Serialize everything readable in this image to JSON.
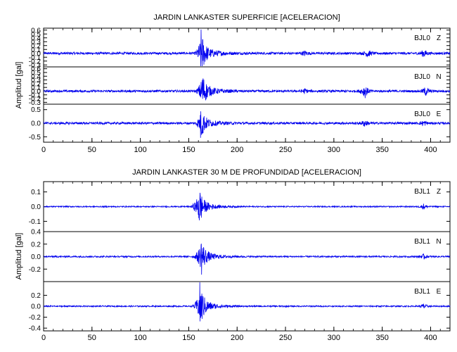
{
  "colors": {
    "trace": "#0000ee",
    "axis": "#000000",
    "background": "#ffffff"
  },
  "chart_data": [
    {
      "type": "line",
      "title": "JARDIN LANKASTER SUPERFICIE [ACELERACION]",
      "ylabel": "Amplitud [gal]",
      "xlim": [
        0,
        420
      ],
      "x_ticks": [
        "0",
        "50",
        "100",
        "150",
        "200",
        "250",
        "300",
        "350",
        "400"
      ],
      "grid": false,
      "panels": [
        {
          "channel": "BJL0",
          "component": "Z",
          "ylim": [
            -0.35,
            0.65
          ],
          "y_ticks": [
            "0.6",
            "0.5",
            "0.4",
            "0.3",
            "0.2",
            "0.1",
            "0.0",
            "-0.1",
            "-0.2",
            "-0.3"
          ],
          "approx_trace": {
            "peak_time": 162,
            "peak_amp": 0.55,
            "noise_amp": 0.03,
            "event_start": 155,
            "event_end": 172,
            "bursts": [
              {
                "t": 270,
                "a": 0.06
              },
              {
                "t": 335,
                "a": 0.1
              },
              {
                "t": 393,
                "a": 0.1
              }
            ]
          }
        },
        {
          "channel": "BJL0",
          "component": "N",
          "ylim": [
            -0.35,
            0.65
          ],
          "y_ticks": [
            "0.6",
            "0.5",
            "0.4",
            "0.3",
            "0.2",
            "0.1",
            "0.0",
            "-0.1",
            "-0.2",
            "-0.3"
          ],
          "approx_trace": {
            "peak_time": 163,
            "peak_amp": 0.5,
            "noise_amp": 0.03,
            "event_start": 156,
            "event_end": 175,
            "bursts": [
              {
                "t": 270,
                "a": 0.06
              },
              {
                "t": 332,
                "a": 0.18
              },
              {
                "t": 395,
                "a": 0.12
              }
            ]
          }
        },
        {
          "channel": "BJL0",
          "component": "E",
          "ylim": [
            -0.7,
            0.7
          ],
          "y_ticks": [
            "0.5",
            "0.0",
            "-0.5"
          ],
          "approx_trace": {
            "peak_time": 162,
            "peak_amp": 0.55,
            "noise_amp": 0.04,
            "event_start": 155,
            "event_end": 172,
            "bursts": [
              {
                "t": 332,
                "a": 0.12
              },
              {
                "t": 393,
                "a": 0.1
              }
            ]
          }
        }
      ]
    },
    {
      "type": "line",
      "title": "JARDIN LANKASTER 30 M DE PROFUNDIDAD [ACELERACION]",
      "ylabel": "Amplitud [gal]",
      "xlim": [
        0,
        420
      ],
      "x_ticks": [
        "0",
        "50",
        "100",
        "150",
        "200",
        "250",
        "300",
        "350",
        "400"
      ],
      "grid": false,
      "panels": [
        {
          "channel": "BJL1",
          "component": "Z",
          "ylim": [
            -0.17,
            0.17
          ],
          "y_ticks": [
            "0.1",
            "0.0",
            "-0.1"
          ],
          "approx_trace": {
            "peak_time": 160,
            "peak_amp": 0.13,
            "noise_amp": 0.004,
            "event_start": 150,
            "event_end": 170,
            "bursts": [
              {
                "t": 393,
                "a": 0.02
              }
            ]
          }
        },
        {
          "channel": "BJL1",
          "component": "N",
          "ylim": [
            -0.4,
            0.4
          ],
          "y_ticks": [
            "0.4",
            "0.2",
            "0.0",
            "-0.2"
          ],
          "approx_trace": {
            "peak_time": 162,
            "peak_amp": 0.3,
            "noise_amp": 0.012,
            "event_start": 153,
            "event_end": 170,
            "bursts": [
              {
                "t": 393,
                "a": 0.04
              }
            ]
          }
        },
        {
          "channel": "BJL1",
          "component": "E",
          "ylim": [
            -0.45,
            0.45
          ],
          "y_ticks": [
            "0.2",
            "0.0",
            "-0.2",
            "-0.4"
          ],
          "approx_trace": {
            "peak_time": 161,
            "peak_amp": 0.4,
            "noise_amp": 0.012,
            "event_start": 152,
            "event_end": 170,
            "bursts": [
              {
                "t": 393,
                "a": 0.05
              }
            ]
          }
        }
      ]
    }
  ]
}
